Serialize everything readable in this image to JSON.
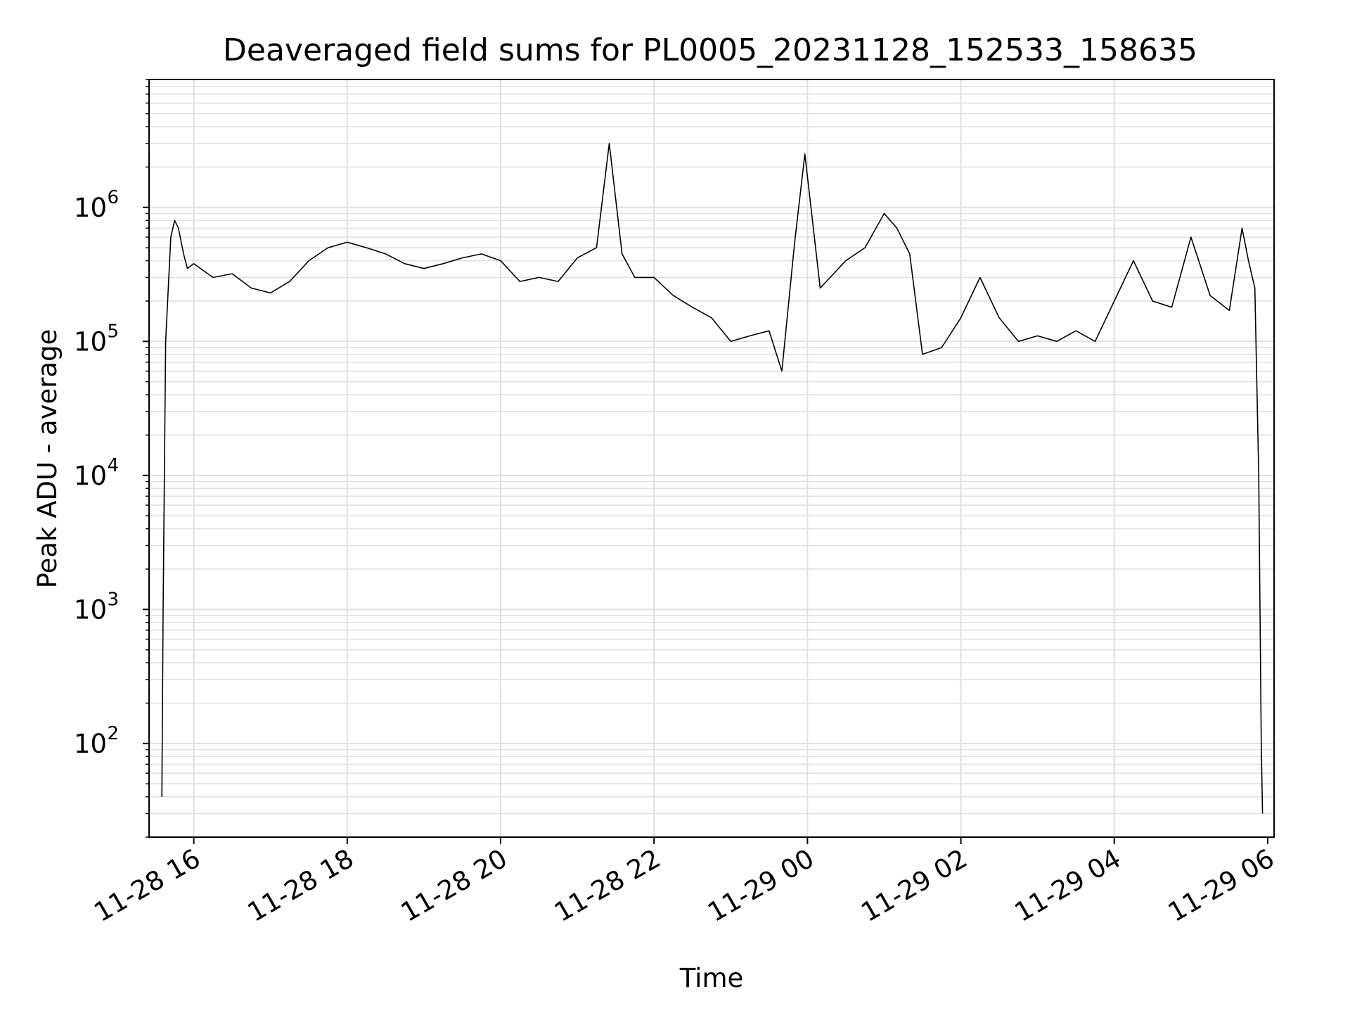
{
  "chart_data": {
    "type": "line",
    "title": "Deaveraged field sums for PL0005_20231128_152533_158635",
    "xlabel": "Time",
    "ylabel": "Peak ADU - average",
    "yscale": "log",
    "ylim": [
      20,
      9000000
    ],
    "xlim": [
      "2023-11-28 15:25",
      "2023-11-29 06:05"
    ],
    "grid": true,
    "line_color": "#000000",
    "grid_color": "#e0e0e0",
    "x_ticks": [
      {
        "t": "2023-11-28 16:00",
        "label": "11-28 16"
      },
      {
        "t": "2023-11-28 18:00",
        "label": "11-28 18"
      },
      {
        "t": "2023-11-28 20:00",
        "label": "11-28 20"
      },
      {
        "t": "2023-11-28 22:00",
        "label": "11-28 22"
      },
      {
        "t": "2023-11-29 00:00",
        "label": "11-29 00"
      },
      {
        "t": "2023-11-29 02:00",
        "label": "11-29 02"
      },
      {
        "t": "2023-11-29 04:00",
        "label": "11-29 04"
      },
      {
        "t": "2023-11-29 06:00",
        "label": "11-29 06"
      }
    ],
    "y_ticks": [
      {
        "value": 100,
        "base": "10",
        "exp": "2"
      },
      {
        "value": 1000,
        "base": "10",
        "exp": "3"
      },
      {
        "value": 10000,
        "base": "10",
        "exp": "4"
      },
      {
        "value": 100000,
        "base": "10",
        "exp": "5"
      },
      {
        "value": 1000000,
        "base": "10",
        "exp": "6"
      }
    ],
    "series": [
      {
        "x": [
          "2023-11-28 15:35",
          "2023-11-28 15:36",
          "2023-11-28 15:38",
          "2023-11-28 15:42",
          "2023-11-28 15:45",
          "2023-11-28 15:48",
          "2023-11-28 15:52",
          "2023-11-28 15:55",
          "2023-11-28 16:00",
          "2023-11-28 16:15",
          "2023-11-28 16:30",
          "2023-11-28 16:45",
          "2023-11-28 17:00",
          "2023-11-28 17:15",
          "2023-11-28 17:30",
          "2023-11-28 17:45",
          "2023-11-28 18:00",
          "2023-11-28 18:15",
          "2023-11-28 18:30",
          "2023-11-28 18:45",
          "2023-11-28 19:00",
          "2023-11-28 19:15",
          "2023-11-28 19:30",
          "2023-11-28 19:45",
          "2023-11-28 20:00",
          "2023-11-28 20:15",
          "2023-11-28 20:30",
          "2023-11-28 20:45",
          "2023-11-28 21:00",
          "2023-11-28 21:15",
          "2023-11-28 21:25",
          "2023-11-28 21:35",
          "2023-11-28 21:45",
          "2023-11-28 22:00",
          "2023-11-28 22:15",
          "2023-11-28 22:30",
          "2023-11-28 22:45",
          "2023-11-28 23:00",
          "2023-11-28 23:15",
          "2023-11-28 23:30",
          "2023-11-28 23:40",
          "2023-11-28 23:50",
          "2023-11-28 23:58",
          "2023-11-29 00:10",
          "2023-11-29 00:30",
          "2023-11-29 00:45",
          "2023-11-29 01:00",
          "2023-11-29 01:10",
          "2023-11-29 01:20",
          "2023-11-29 01:30",
          "2023-11-29 01:45",
          "2023-11-29 02:00",
          "2023-11-29 02:15",
          "2023-11-29 02:30",
          "2023-11-29 02:45",
          "2023-11-29 03:00",
          "2023-11-29 03:15",
          "2023-11-29 03:30",
          "2023-11-29 03:45",
          "2023-11-29 04:00",
          "2023-11-29 04:15",
          "2023-11-29 04:30",
          "2023-11-29 04:45",
          "2023-11-29 05:00",
          "2023-11-29 05:15",
          "2023-11-29 05:30",
          "2023-11-29 05:40",
          "2023-11-29 05:45",
          "2023-11-29 05:50",
          "2023-11-29 05:53",
          "2023-11-29 05:55",
          "2023-11-29 05:56"
        ],
        "y": [
          40,
          1000,
          100000,
          600000,
          800000,
          700000,
          450000,
          350000,
          380000,
          300000,
          320000,
          250000,
          230000,
          280000,
          400000,
          500000,
          550000,
          500000,
          450000,
          380000,
          350000,
          380000,
          420000,
          450000,
          400000,
          280000,
          300000,
          280000,
          420000,
          500000,
          3000000,
          450000,
          300000,
          300000,
          220000,
          180000,
          150000,
          100000,
          110000,
          120000,
          60000,
          550000,
          2500000,
          250000,
          400000,
          500000,
          900000,
          700000,
          450000,
          80000,
          90000,
          150000,
          300000,
          150000,
          100000,
          110000,
          100000,
          120000,
          100000,
          200000,
          400000,
          200000,
          180000,
          600000,
          220000,
          170000,
          700000,
          400000,
          250000,
          10000,
          100,
          30
        ]
      }
    ]
  }
}
